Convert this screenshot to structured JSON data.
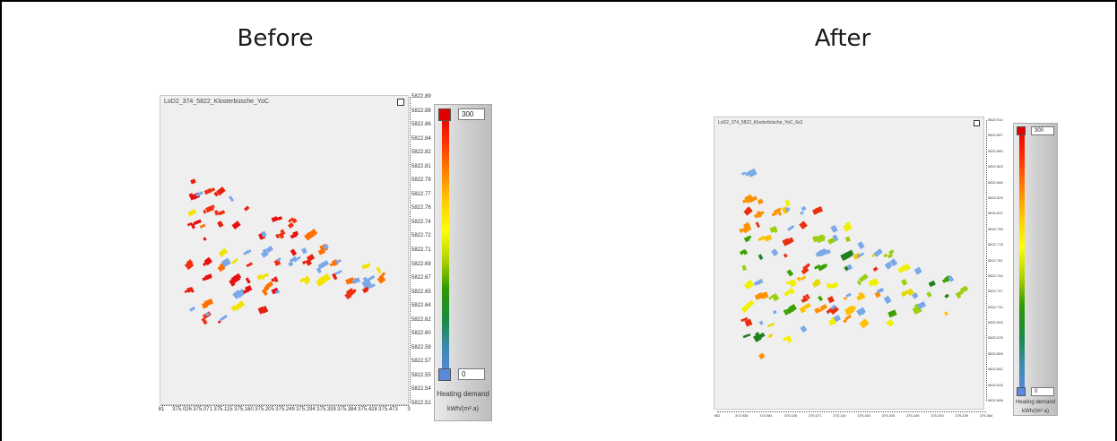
{
  "headings": {
    "before": "Before",
    "after": "After"
  },
  "before": {
    "title": "LoD2_374_5822_Klosterbüsche_YoC",
    "y_ticks": [
      "5822.89",
      "5822.88",
      "5822.86",
      "5822.84",
      "5822.82",
      "5822.81",
      "5822.79",
      "5822.77",
      "5822.76",
      "5822.74",
      "5822.72",
      "5822.71",
      "5822.69",
      "5822.67",
      "5822.65",
      "5822.64",
      "5822.62",
      "5822.60",
      "5822.59",
      "5822.57",
      "5822.55",
      "5822.54",
      "5822.52"
    ],
    "x_ticks": [
      "81",
      "375.026",
      "375.071",
      "375.115",
      "375.160",
      "375.205",
      "375.249",
      "375.294",
      "375.339",
      "375.384",
      "375.428",
      "375.473",
      "3"
    ],
    "legend": {
      "max": "300",
      "min": "0",
      "label": "Heating demand",
      "unit": "kWh/(m²·a)"
    }
  },
  "after": {
    "title": "LoD2_374_5822_Klosterbüsche_YoC_6x2",
    "y_ticks": [
      "5822.914",
      "5822.897",
      "5822.880",
      "5822.863",
      "5822.846",
      "5822.829",
      "5822.812",
      "5822.795",
      "5822.778",
      "5822.761",
      "5822.744",
      "5822.727",
      "5822.710",
      "5822.693",
      "5822.676",
      "5822.659",
      "5822.642",
      "5822.625",
      "5822.608"
    ],
    "x_ticks": [
      "982",
      "374.936",
      "374.981",
      "375.026",
      "375.071",
      "375.115",
      "375.160",
      "375.205",
      "375.249",
      "375.294",
      "375.339",
      "375.384"
    ],
    "legend": {
      "max": "300",
      "min": "0",
      "label": "Heating demand",
      "unit": "kWh/(m²·a)"
    }
  },
  "colors": {
    "gradient": [
      "#e00000",
      "#ff3000",
      "#ff8000",
      "#ffc800",
      "#ffff00",
      "#b4d200",
      "#2e9a00",
      "#1a8a40",
      "#3a8ab0",
      "#5a8ae0"
    ],
    "before_palette": [
      "#e81010",
      "#e81010",
      "#e81010",
      "#f03010",
      "#e82010",
      "#ff7000",
      "#f2e400",
      "#7aa8e8"
    ],
    "after_palette": [
      "#e8d800",
      "#ffc000",
      "#9ccf10",
      "#3aa000",
      "#208020",
      "#ff9000",
      "#f0f000",
      "#e83010",
      "#7aa8e8"
    ]
  }
}
